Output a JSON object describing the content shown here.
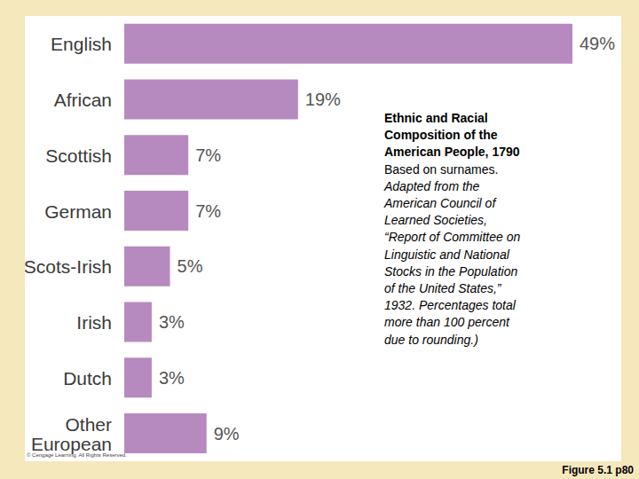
{
  "chart_data": {
    "type": "bar",
    "orientation": "horizontal",
    "categories": [
      "English",
      "African",
      "Scottish",
      "German",
      "Scots-Irish",
      "Irish",
      "Dutch",
      "Other European"
    ],
    "values": [
      49,
      19,
      7,
      7,
      5,
      3,
      3,
      9
    ],
    "value_labels": [
      "49%",
      "19%",
      "7%",
      "7%",
      "5%",
      "3%",
      "3%",
      "9%"
    ],
    "color": "#b68abf",
    "xlim": [
      0,
      49
    ],
    "grid": false,
    "data_labels": true,
    "tick_labels": "y",
    "note": {
      "title": "Ethnic and Racial Composition of the American People, 1790",
      "text": "Based on surnames.",
      "source": "Adapted from the American Council of Learned Societies, “Report of Committee on Linguistic and National Stocks in the Population of the United States,” 1932. Percentages total more than 100 percent due to rounding.)"
    },
    "credit": "© Cengage Learning. All Rights Reserved.",
    "caption": "Figure 5.1 p80"
  }
}
